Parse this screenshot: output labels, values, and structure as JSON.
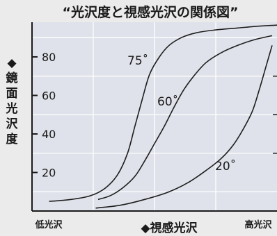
{
  "chart_data": {
    "type": "line",
    "title": "“光沢度と視感光沢の関係図”",
    "ylabel": "◆鏡面光沢度",
    "xlabel": "◆視感光沢",
    "x_axis_end_labels": [
      "低光沢",
      "高光沢"
    ],
    "y_ticks": [
      20,
      40,
      60,
      80
    ],
    "ylim": [
      0,
      98
    ],
    "xlim": [
      0,
      100
    ],
    "grid": true,
    "series": [
      {
        "name": "75˚",
        "color": "#1e1e1e",
        "x": [
          7,
          16,
          24,
          30,
          35,
          39,
          42,
          45,
          48,
          52,
          56,
          61,
          67,
          75,
          84,
          93,
          100
        ],
        "y": [
          5,
          6,
          8,
          12,
          19,
          30,
          44,
          58,
          71,
          80,
          86,
          90,
          92.5,
          94,
          95,
          96,
          96.5
        ]
      },
      {
        "name": "60˚",
        "color": "#1e1e1e",
        "x": [
          27,
          32,
          37,
          42,
          46,
          50,
          54,
          58,
          62,
          66,
          71,
          77,
          84,
          91,
          98
        ],
        "y": [
          6,
          8,
          12,
          18,
          26,
          35,
          44,
          54,
          63,
          70,
          77,
          82,
          86,
          89,
          91
        ]
      },
      {
        "name": "20˚",
        "color": "#1e1e1e",
        "x": [
          26,
          36,
          46,
          56,
          64,
          71,
          77,
          82,
          86,
          90,
          93,
          95.5,
          98
        ],
        "y": [
          1.5,
          3,
          6,
          10,
          15,
          21,
          27,
          34,
          42,
          52,
          64,
          75,
          86
        ]
      }
    ],
    "colors": {
      "background": "#ebebec",
      "plot_background": "#dfe2ea",
      "grid": "#ffffff",
      "line": "#1e1e1e"
    }
  }
}
